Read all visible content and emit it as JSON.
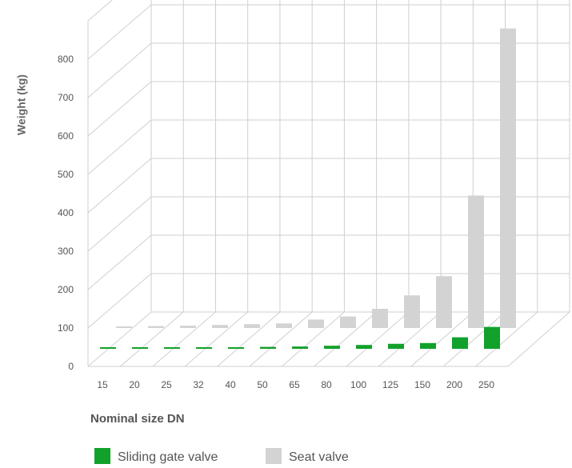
{
  "chart_data": {
    "type": "bar",
    "style": "3d",
    "title": "",
    "xlabel": "Nominal size DN",
    "ylabel": "Weight (kg)",
    "ylim": [
      0,
      900
    ],
    "yticks": [
      0,
      100,
      200,
      300,
      400,
      500,
      600,
      700,
      800
    ],
    "grid": true,
    "legend_position": "bottom-left",
    "categories": [
      "15",
      "20",
      "25",
      "32",
      "40",
      "50",
      "65",
      "80",
      "100",
      "125",
      "150",
      "200",
      "250"
    ],
    "series": [
      {
        "name": "Sliding gate valve",
        "color": "#12a12b",
        "values": [
          3,
          3,
          3,
          4,
          4,
          5,
          6,
          8,
          10,
          13,
          15,
          30,
          57
        ]
      },
      {
        "name": "Seat valve",
        "color": "#d3d3d3",
        "values": [
          4,
          5,
          6,
          8,
          10,
          12,
          22,
          30,
          50,
          85,
          135,
          345,
          780
        ]
      }
    ]
  }
}
